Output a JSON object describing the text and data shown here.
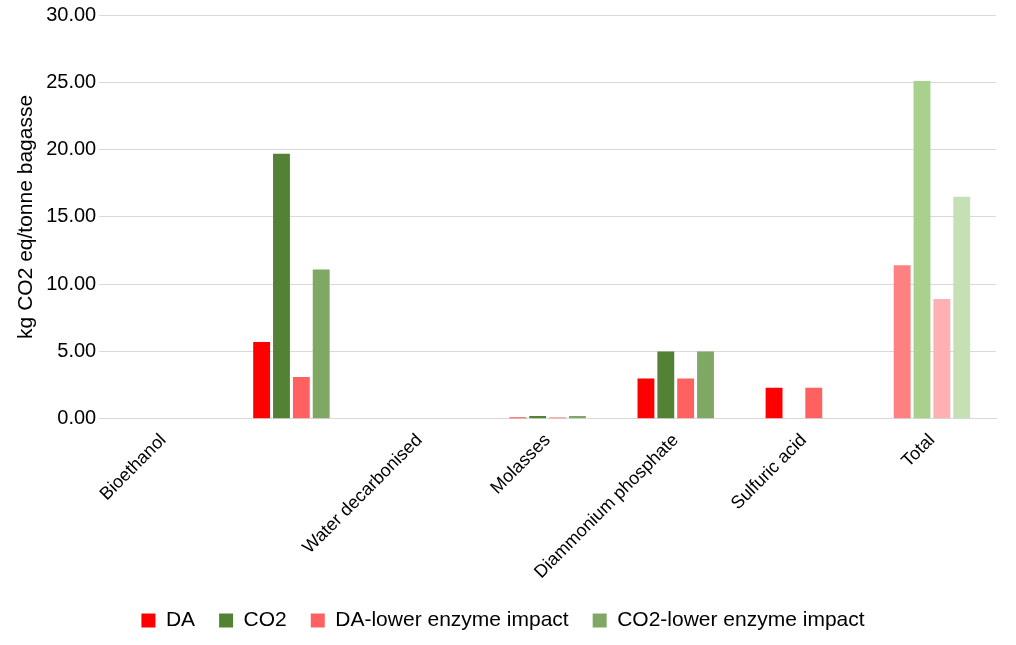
{
  "chart_data": {
    "type": "bar",
    "ylabel": "kg CO2 eq/tonne bagasse",
    "categories": [
      "Bioethanol",
      null,
      "Water decarbonised",
      "Molasses",
      "Diammonium phosphate",
      "Sulfuric acid",
      "Total"
    ],
    "series": [
      {
        "name": "DA",
        "color": "#ff0000",
        "colors": [
          "#ff0000",
          "#ff0000",
          "#ff0000",
          "#ff0000",
          "#ff0000",
          "#ff0000",
          "#ff8080"
        ],
        "values": [
          0,
          5.7,
          0,
          0.1,
          3.0,
          2.3,
          11.4
        ]
      },
      {
        "name": "CO2",
        "color": "#548235",
        "colors": [
          "#548235",
          "#548235",
          "#548235",
          "#548235",
          "#548235",
          "#548235",
          "#a9d18e"
        ],
        "values": [
          0,
          19.7,
          0,
          0.2,
          5.0,
          0,
          25.1
        ]
      },
      {
        "name": "DA-lower enzyme impact",
        "color": "#ff6060",
        "colors": [
          "#ff6060",
          "#ff6060",
          "#ff6060",
          "#ff6060",
          "#ff6060",
          "#ff6060",
          "#ffb0b0"
        ],
        "values": [
          0,
          3.1,
          0,
          0.1,
          3.0,
          2.3,
          8.9
        ]
      },
      {
        "name": "CO2-lower enzyme impact",
        "color": "#7fa865",
        "colors": [
          "#7fa865",
          "#7fa865",
          "#7fa865",
          "#7fa865",
          "#7fa865",
          "#7fa865",
          "#c5e0b4"
        ],
        "values": [
          0,
          11.1,
          0,
          0.2,
          5.0,
          0,
          16.5
        ]
      }
    ],
    "ylim": [
      0,
      30
    ],
    "yticks": [
      {
        "value": 0,
        "label": "0.00"
      },
      {
        "value": 5,
        "label": "5.00"
      },
      {
        "value": 10,
        "label": "10.00"
      },
      {
        "value": 15,
        "label": "15.00"
      },
      {
        "value": 20,
        "label": "20.00"
      },
      {
        "value": 25,
        "label": "25.00"
      },
      {
        "value": 30,
        "label": "30.00"
      }
    ],
    "grid": "y",
    "legend": "bottom"
  }
}
